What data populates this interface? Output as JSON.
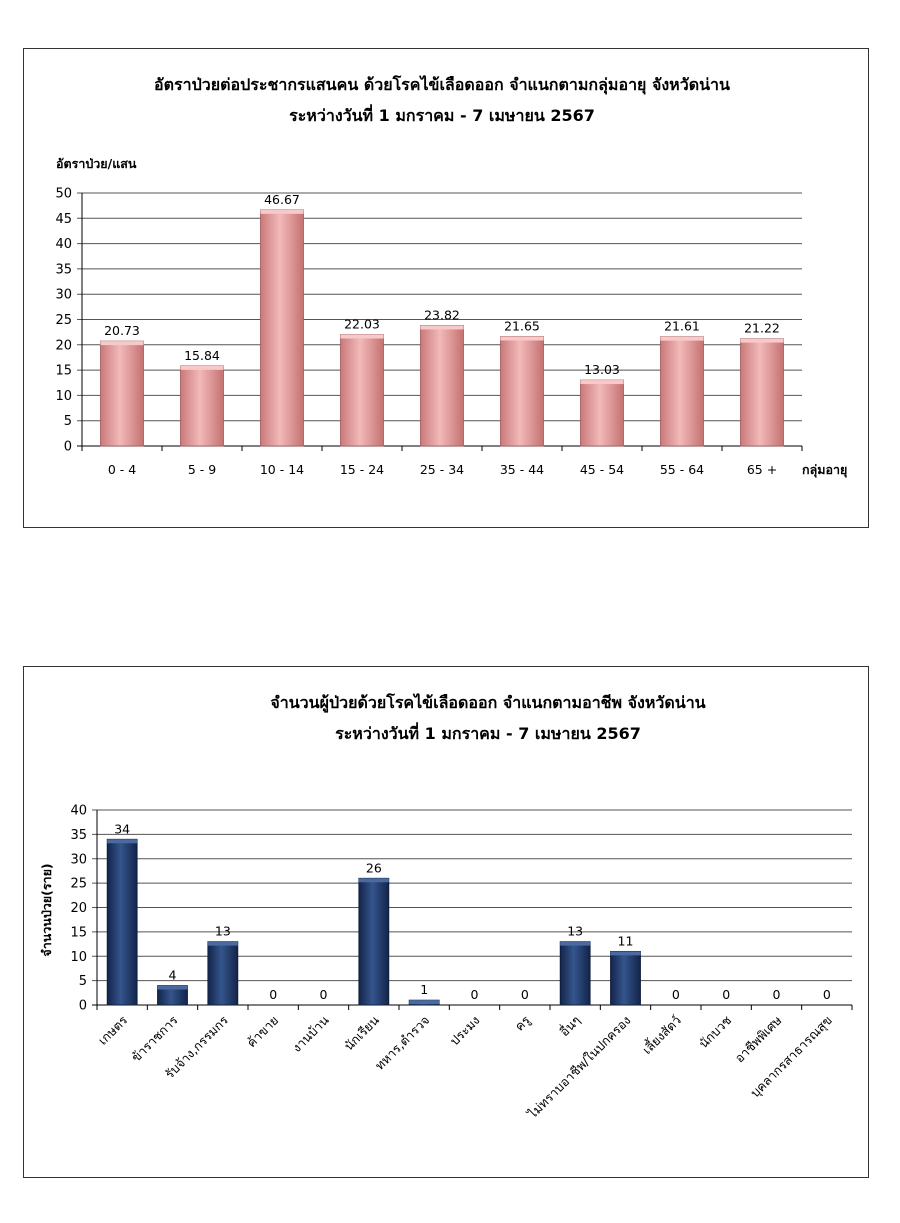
{
  "chart_data": [
    {
      "type": "bar",
      "title": "อัตราป่วยต่อประชากรแสนคน ด้วยโรคไข้เลือดออก จำแนกตามกลุ่มอายุ จังหวัดน่าน",
      "subtitle": "ระหว่างวันที่  1 มกราคม - 7 เมษายน 2567",
      "ylabel": "อัตราป่วย/แสน",
      "xlabel": "กลุ่มอายุ",
      "ylim": [
        0,
        50
      ],
      "yticks": [
        "0",
        "5",
        "10",
        "15",
        "20",
        "25",
        "30",
        "35",
        "40",
        "45",
        "50"
      ],
      "categories": [
        "0 - 4",
        "5 - 9",
        "10 - 14",
        "15 - 24",
        "25 - 34",
        "35 - 44",
        "45 - 54",
        "55 - 64",
        "65 +"
      ],
      "values": [
        20.73,
        15.84,
        46.67,
        22.03,
        23.82,
        21.65,
        13.03,
        21.61,
        21.22
      ],
      "value_labels": [
        "20.73",
        "15.84",
        "46.67",
        "22.03",
        "23.82",
        "21.65",
        "13.03",
        "21.61",
        "21.22"
      ],
      "bar_color": "#e8a0a0",
      "grid": true
    },
    {
      "type": "bar",
      "title": "จำนวนผู้ป่วยด้วยโรคไข้เลือดออก จำแนกตามอาชีพ  จังหวัดน่าน",
      "subtitle": "ระหว่างวันที่  1 มกราคม - 7 เมษายน 2567",
      "ylabel": "จำนวนป่วย(ราย)",
      "xlabel": "",
      "ylim": [
        0,
        40
      ],
      "yticks": [
        "0",
        "5",
        "10",
        "15",
        "20",
        "25",
        "30",
        "35",
        "40"
      ],
      "categories": [
        "เกษตร",
        "ข้าราชการ",
        "รับจ้าง,กรรมกร",
        "ค้าขาย",
        "งานบ้าน",
        "นักเรียน",
        "ทหาร,ตำรวจ",
        "ประมง",
        "ครู",
        "อื่นๆ",
        "ไม่ทราบอาชีพ/ในปกครอง",
        "เลี้ยงสัตว์",
        "นักบวช",
        "อาชีพพิเศษ",
        "บุคลากรสาธารณสุข"
      ],
      "values": [
        34,
        4,
        13,
        0,
        0,
        26,
        1,
        0,
        0,
        13,
        11,
        0,
        0,
        0,
        0
      ],
      "value_labels": [
        "34",
        "4",
        "13",
        "0",
        "0",
        "26",
        "1",
        "0",
        "0",
        "13",
        "11",
        "0",
        "0",
        "0",
        "0"
      ],
      "bar_color": "#1f3864",
      "grid": true
    }
  ]
}
